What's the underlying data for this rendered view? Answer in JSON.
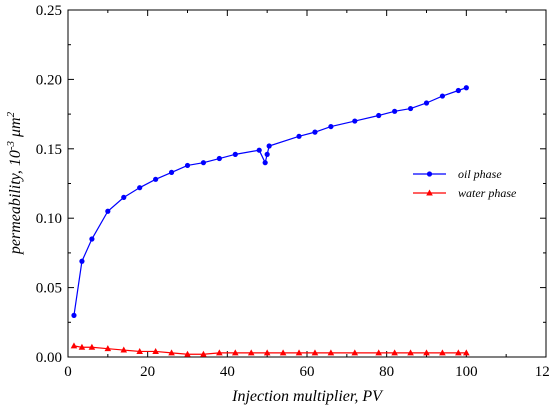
{
  "chart_data": {
    "type": "line",
    "xlabel": "Injection multiplier, PV",
    "ylabel_parts": [
      "permeability, 10",
      "-3",
      " μm",
      "2"
    ],
    "xlim": [
      0,
      120
    ],
    "ylim": [
      0,
      0.25
    ],
    "xticks": [
      "0",
      "20",
      "40",
      "60",
      "80",
      "100",
      "120"
    ],
    "yticks": [
      "0.00",
      "0.05",
      "0.10",
      "0.15",
      "0.20",
      "0.25"
    ],
    "grid": false,
    "legend_position": "right-middle",
    "series": [
      {
        "name": "oil phase",
        "color": "#0000ff",
        "marker": "circle",
        "points": [
          [
            1.5,
            0.03
          ],
          [
            3.5,
            0.069
          ],
          [
            6,
            0.085
          ],
          [
            10,
            0.105
          ],
          [
            14,
            0.115
          ],
          [
            18,
            0.122
          ],
          [
            22,
            0.128
          ],
          [
            26,
            0.133
          ],
          [
            30,
            0.138
          ],
          [
            34,
            0.14
          ],
          [
            38,
            0.143
          ],
          [
            42,
            0.146
          ],
          [
            48,
            0.149
          ],
          [
            49.5,
            0.14
          ],
          [
            50,
            0.146
          ],
          [
            50.5,
            0.152
          ],
          [
            58,
            0.159
          ],
          [
            62,
            0.162
          ],
          [
            66,
            0.166
          ],
          [
            72,
            0.17
          ],
          [
            78,
            0.174
          ],
          [
            82,
            0.177
          ],
          [
            86,
            0.179
          ],
          [
            90,
            0.183
          ],
          [
            94,
            0.188
          ],
          [
            98,
            0.192
          ],
          [
            100,
            0.194
          ]
        ]
      },
      {
        "name": "water phase",
        "color": "#ff0000",
        "marker": "triangle",
        "points": [
          [
            1.5,
            0.008
          ],
          [
            3.5,
            0.007
          ],
          [
            6,
            0.007
          ],
          [
            10,
            0.006
          ],
          [
            14,
            0.005
          ],
          [
            18,
            0.004
          ],
          [
            22,
            0.004
          ],
          [
            26,
            0.003
          ],
          [
            30,
            0.002
          ],
          [
            34,
            0.002
          ],
          [
            38,
            0.003
          ],
          [
            42,
            0.003
          ],
          [
            46,
            0.003
          ],
          [
            50,
            0.003
          ],
          [
            54,
            0.003
          ],
          [
            58,
            0.003
          ],
          [
            62,
            0.003
          ],
          [
            66,
            0.003
          ],
          [
            72,
            0.003
          ],
          [
            78,
            0.003
          ],
          [
            82,
            0.003
          ],
          [
            86,
            0.003
          ],
          [
            90,
            0.003
          ],
          [
            94,
            0.003
          ],
          [
            98,
            0.003
          ],
          [
            100,
            0.003
          ]
        ]
      }
    ]
  }
}
